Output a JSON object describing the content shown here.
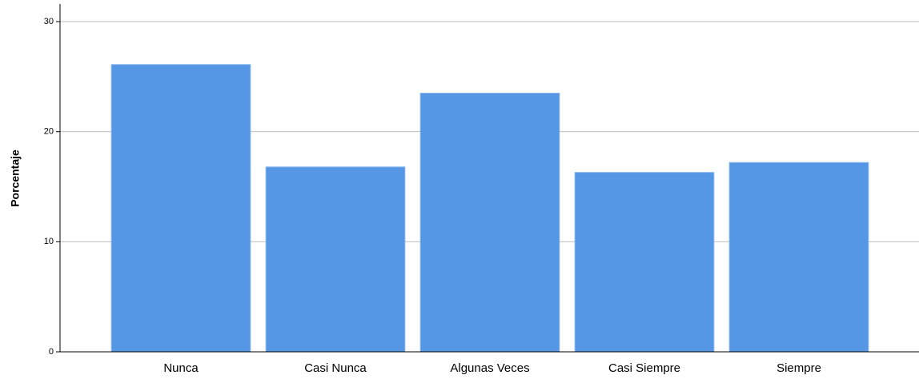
{
  "chart_data": {
    "type": "bar",
    "y_label": "Porcentaje",
    "categories": [
      "Nunca",
      "Casi Nunca",
      "Algunas Veces",
      "Casi Siempre",
      "Siempre"
    ],
    "values": [
      26.1,
      16.8,
      23.5,
      16.3,
      17.2
    ],
    "color": "#5596e5",
    "ylim": [
      0,
      31.6
    ],
    "yticks": [
      0,
      10,
      20,
      30
    ],
    "grid": true
  }
}
